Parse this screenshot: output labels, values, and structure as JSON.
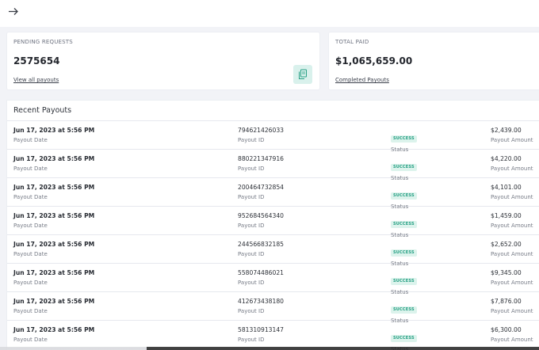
{
  "colors": {
    "page_bg": "#f2f3f7",
    "card_bg": "#ffffff",
    "accent_green": "#27a084",
    "badge_bg": "#dcf3ec"
  },
  "topbar": {
    "back_icon": "arrow-right-icon"
  },
  "pending": {
    "label": "PENDING REQUESTS",
    "value": "2575654",
    "link": "View all payouts",
    "icon": "document-copy-icon"
  },
  "total": {
    "label": "TOTAL PAID",
    "value": "$1,065,659.00",
    "link": "Completed Payouts"
  },
  "payouts": {
    "title": "Recent Payouts",
    "labels": {
      "date": "Payout Date",
      "id": "Payout ID",
      "status": "Status",
      "amount": "Payout Amount"
    },
    "rows": [
      {
        "date": "Jun 17, 2023 at 5:56 PM",
        "id": "794621426033",
        "status": "SUCCESS",
        "amount": "$2,439.00"
      },
      {
        "date": "Jun 17, 2023 at 5:56 PM",
        "id": "880221347916",
        "status": "SUCCESS",
        "amount": "$4,220.00"
      },
      {
        "date": "Jun 17, 2023 at 5:56 PM",
        "id": "200464732854",
        "status": "SUCCESS",
        "amount": "$4,101.00"
      },
      {
        "date": "Jun 17, 2023 at 5:56 PM",
        "id": "952684564340",
        "status": "SUCCESS",
        "amount": "$1,459.00"
      },
      {
        "date": "Jun 17, 2023 at 5:56 PM",
        "id": "244566832185",
        "status": "SUCCESS",
        "amount": "$2,652.00"
      },
      {
        "date": "Jun 17, 2023 at 5:56 PM",
        "id": "558074486021",
        "status": "SUCCESS",
        "amount": "$9,345.00"
      },
      {
        "date": "Jun 17, 2023 at 5:56 PM",
        "id": "412673438180",
        "status": "SUCCESS",
        "amount": "$7,876.00"
      },
      {
        "date": "Jun 17, 2023 at 5:56 PM",
        "id": "581310913147",
        "status": "SUCCESS",
        "amount": "$6,300.00"
      }
    ]
  }
}
